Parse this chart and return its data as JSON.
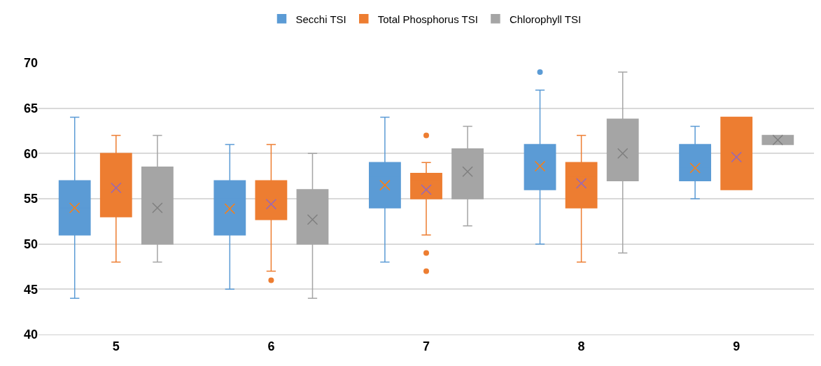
{
  "chart_data": {
    "type": "box",
    "categories": [
      "5",
      "6",
      "7",
      "8",
      "9"
    ],
    "series": [
      {
        "name": "Secchi TSI",
        "color": "#5b9bd5",
        "boxes": [
          {
            "low": 44,
            "q1": 51,
            "median": 54,
            "q3": 57,
            "high": 64,
            "mean": 54
          },
          {
            "low": 45,
            "q1": 51,
            "median": 55,
            "q3": 57,
            "high": 61,
            "mean": 53.9
          },
          {
            "low": 48,
            "q1": 54,
            "median": 57.5,
            "q3": 59,
            "high": 64,
            "mean": 56.5
          },
          {
            "low": 50,
            "q1": 56,
            "median": 59,
            "q3": 61,
            "high": 67,
            "mean": 58.6,
            "outliers": [
              69
            ]
          },
          {
            "low": 55,
            "q1": 57,
            "median": 58.5,
            "q3": 61,
            "high": 63,
            "mean": 58.4
          }
        ]
      },
      {
        "name": "Total Phosphorus TSI",
        "color": "#ed7d31",
        "boxes": [
          {
            "low": 48,
            "q1": 53,
            "median": 56,
            "q3": 60,
            "high": 62,
            "mean": 56.2
          },
          {
            "low": 47,
            "q1": 52.7,
            "median": 54,
            "q3": 57,
            "high": 61,
            "mean": 54.4,
            "outliers": [
              46
            ]
          },
          {
            "low": 51,
            "q1": 55,
            "median": 57,
            "q3": 57.8,
            "high": 59,
            "mean": 56,
            "outliers": [
              62,
              49,
              47
            ]
          },
          {
            "low": 48,
            "q1": 54,
            "median": 57.5,
            "q3": 59,
            "high": 62,
            "mean": 56.7
          },
          {
            "low": 56,
            "q1": 56,
            "median": 59,
            "q3": 64,
            "high": 64,
            "mean": 59.6
          }
        ]
      },
      {
        "name": "Chlorophyll TSI",
        "color": "#a5a5a5",
        "boxes": [
          {
            "low": 48,
            "q1": 50,
            "median": 53,
            "q3": 58.5,
            "high": 62,
            "mean": 54
          },
          {
            "low": 44,
            "q1": 50,
            "median": 52,
            "q3": 56,
            "high": 60,
            "mean": 52.7
          },
          {
            "low": 52,
            "q1": 55,
            "median": 58,
            "q3": 60.5,
            "high": 63,
            "mean": 58
          },
          {
            "low": 49,
            "q1": 57,
            "median": 60,
            "q3": 63.8,
            "high": 69,
            "mean": 60
          },
          {
            "low": 61,
            "q1": 61,
            "median": 61.5,
            "q3": 62,
            "high": 62,
            "mean": 61.5
          }
        ]
      }
    ],
    "ylim": [
      40,
      70
    ],
    "yticks": [
      40,
      45,
      50,
      55,
      60,
      65,
      70
    ],
    "grid": "y",
    "legend": "top"
  }
}
